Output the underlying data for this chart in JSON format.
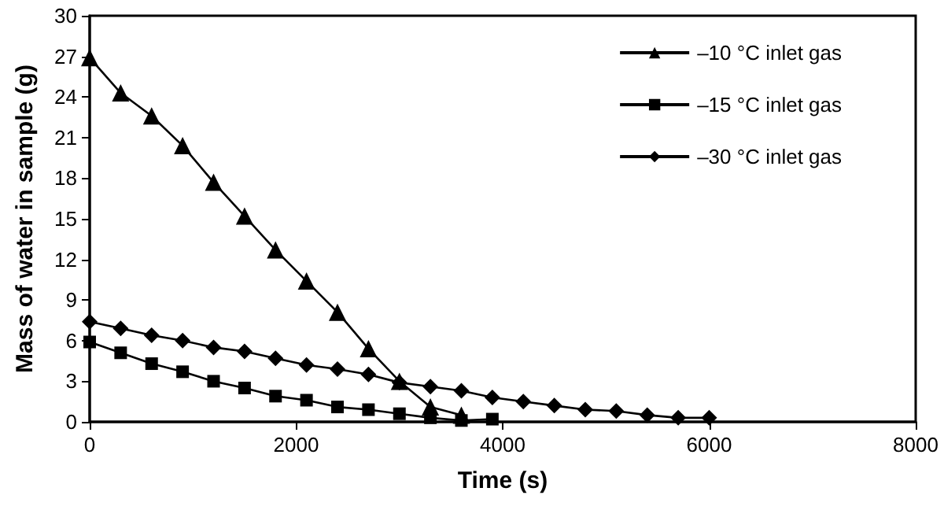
{
  "chart_data": {
    "type": "line",
    "xlabel": "Time (s)",
    "ylabel": "Mass of water in sample (g)",
    "xlim": [
      0,
      8000
    ],
    "xticks": [
      0,
      2000,
      4000,
      6000,
      8000
    ],
    "ylim": [
      0,
      30
    ],
    "yticks": [
      0,
      3,
      6,
      9,
      12,
      15,
      18,
      21,
      24,
      27,
      30
    ],
    "grid": false,
    "legend": "top right",
    "line_style": "solid",
    "series": [
      {
        "name": "–10 °C inlet gas",
        "color": "#000000",
        "marker": "triangle",
        "x": [
          0,
          300,
          600,
          900,
          1200,
          1500,
          1800,
          2100,
          2400,
          2700,
          3000,
          3300,
          3600
        ],
        "values": [
          26.9,
          24.3,
          22.6,
          20.4,
          17.7,
          15.2,
          12.7,
          10.4,
          8.1,
          5.4,
          3.0,
          1.1,
          0.5
        ]
      },
      {
        "name": "–15 °C inlet gas",
        "color": "#000000",
        "marker": "square",
        "x": [
          0,
          300,
          600,
          900,
          1200,
          1500,
          1800,
          2100,
          2400,
          2700,
          3000,
          3300,
          3600,
          3900
        ],
        "values": [
          5.9,
          5.1,
          4.3,
          3.7,
          3.0,
          2.5,
          1.9,
          1.6,
          1.1,
          0.9,
          0.6,
          0.3,
          0.1,
          0.2
        ]
      },
      {
        "name": "–30 °C inlet gas",
        "color": "#000000",
        "marker": "diamond",
        "x": [
          0,
          300,
          600,
          900,
          1200,
          1500,
          1800,
          2100,
          2400,
          2700,
          3000,
          3300,
          3600,
          3900,
          4200,
          4500,
          4800,
          5100,
          5400,
          5700,
          6000
        ],
        "values": [
          7.4,
          6.9,
          6.4,
          6.0,
          5.5,
          5.2,
          4.7,
          4.2,
          3.9,
          3.5,
          2.9,
          2.6,
          2.3,
          1.8,
          1.5,
          1.2,
          0.9,
          0.8,
          0.5,
          0.3,
          0.3
        ]
      }
    ]
  }
}
